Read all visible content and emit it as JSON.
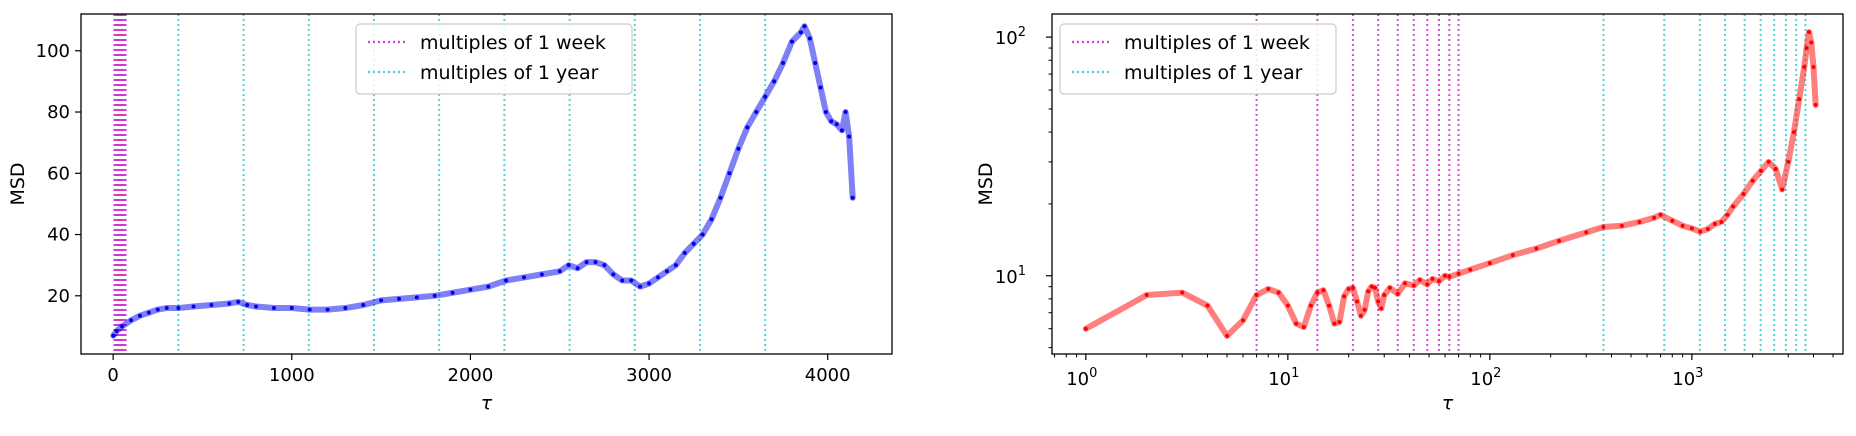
{
  "figure": {
    "colors": {
      "week": "#cc22cc",
      "year": "#28c8c8",
      "lin_series": "#0000ee",
      "log_series": "#ff0000",
      "legend_border": "#cccccc"
    }
  },
  "chart_data": [
    {
      "type": "line",
      "scale": "linear",
      "xlabel": "τ",
      "ylabel": "MSD",
      "xlim": [
        -180,
        4360
      ],
      "ylim": [
        1,
        112
      ],
      "xticks": [
        0,
        1000,
        2000,
        3000,
        4000
      ],
      "yticks": [
        20,
        40,
        60,
        80,
        100
      ],
      "legend": {
        "placement": "top-center",
        "entries": [
          "multiples of 1 week",
          "multiples of 1 year"
        ]
      },
      "week_lines": [
        7,
        14,
        21,
        28,
        35,
        42,
        49,
        56,
        63,
        70
      ],
      "year_lines": [
        365,
        730,
        1095,
        1460,
        1825,
        2190,
        2555,
        2920,
        3285,
        3650
      ],
      "series": [
        {
          "color": "#0000ee",
          "x": [
            1,
            20,
            50,
            100,
            150,
            200,
            250,
            300,
            365,
            450,
            550,
            650,
            700,
            750,
            800,
            900,
            1000,
            1100,
            1200,
            1300,
            1400,
            1500,
            1600,
            1700,
            1800,
            1900,
            2000,
            2100,
            2200,
            2300,
            2400,
            2500,
            2550,
            2600,
            2650,
            2700,
            2750,
            2800,
            2850,
            2900,
            2950,
            3000,
            3050,
            3100,
            3150,
            3200,
            3250,
            3300,
            3350,
            3400,
            3450,
            3500,
            3550,
            3600,
            3650,
            3700,
            3750,
            3800,
            3850,
            3870,
            3900,
            3930,
            3960,
            3990,
            4020,
            4050,
            4080,
            4100,
            4120,
            4140
          ],
          "y": [
            7,
            8.5,
            10,
            12,
            13.5,
            14.5,
            15.5,
            16,
            16,
            16.5,
            17,
            17.5,
            18,
            17,
            16.5,
            16,
            16,
            15.5,
            15.5,
            16,
            17,
            18.5,
            19,
            19.5,
            20,
            21,
            22,
            23,
            25,
            26,
            27,
            28,
            30,
            29,
            31,
            31,
            30,
            27,
            25,
            25,
            23,
            24,
            26,
            28,
            30,
            34,
            37,
            40,
            45,
            52,
            60,
            68,
            75,
            80,
            85,
            90,
            96,
            103,
            106,
            108,
            104,
            96,
            88,
            80,
            77,
            76,
            74,
            80,
            72,
            52
          ]
        }
      ]
    },
    {
      "type": "line",
      "scale": "log",
      "xlabel": "τ",
      "ylabel": "MSD",
      "xlim": [
        0.68,
        5600
      ],
      "ylim": [
        4.7,
        125
      ],
      "xticks": [
        "10",
        "10",
        "10",
        "10"
      ],
      "xtick_exponents": [
        "0",
        "1",
        "2",
        "3"
      ],
      "xtick_values": [
        1,
        10,
        100,
        1000
      ],
      "yticks": [
        "10",
        "10"
      ],
      "ytick_exponents": [
        "1",
        "2"
      ],
      "ytick_values": [
        10,
        100
      ],
      "legend": {
        "placement": "top-left",
        "entries": [
          "multiples of 1 week",
          "multiples of 1 year"
        ]
      },
      "week_lines": [
        7,
        14,
        21,
        28,
        35,
        42,
        49,
        56,
        63,
        70
      ],
      "year_lines": [
        365,
        730,
        1095,
        1460,
        1825,
        2190,
        2555,
        2920,
        3285,
        3650
      ],
      "series": [
        {
          "color": "#ff0000",
          "x": [
            1,
            2,
            3,
            4,
            5,
            6,
            7,
            8,
            9,
            10,
            11,
            12,
            13,
            14,
            15,
            16,
            17,
            18,
            19,
            20,
            21,
            22,
            23,
            24,
            25,
            26,
            27,
            28,
            29,
            30,
            32,
            35,
            38,
            42,
            45,
            49,
            52,
            56,
            60,
            63,
            70,
            80,
            100,
            130,
            170,
            220,
            300,
            365,
            450,
            550,
            650,
            700,
            800,
            900,
            1000,
            1100,
            1200,
            1300,
            1400,
            1500,
            1600,
            1800,
            2000,
            2200,
            2400,
            2600,
            2800,
            3000,
            3200,
            3400,
            3600,
            3700,
            3800,
            3900,
            4000,
            4100
          ],
          "y": [
            6,
            8.3,
            8.5,
            7.5,
            5.6,
            6.5,
            8.3,
            8.8,
            8.5,
            7.5,
            6.3,
            6.1,
            7.5,
            8.5,
            8.7,
            7.5,
            6.3,
            6.4,
            8.2,
            8.8,
            8.9,
            7.8,
            6.8,
            7.2,
            8.6,
            9.0,
            8.9,
            7.8,
            7.3,
            8.3,
            8.9,
            8.4,
            9.3,
            9.1,
            9.6,
            9.2,
            9.7,
            9.5,
            10,
            9.9,
            10.2,
            10.6,
            11.3,
            12.2,
            13,
            14,
            15.2,
            16,
            16.2,
            16.8,
            17.5,
            18,
            17,
            16.2,
            15.8,
            15.3,
            15.7,
            16.5,
            16.8,
            18,
            19.5,
            22,
            25,
            27.5,
            30,
            28,
            23,
            30,
            40,
            55,
            75,
            90,
            105,
            95,
            75,
            52
          ]
        }
      ]
    }
  ]
}
